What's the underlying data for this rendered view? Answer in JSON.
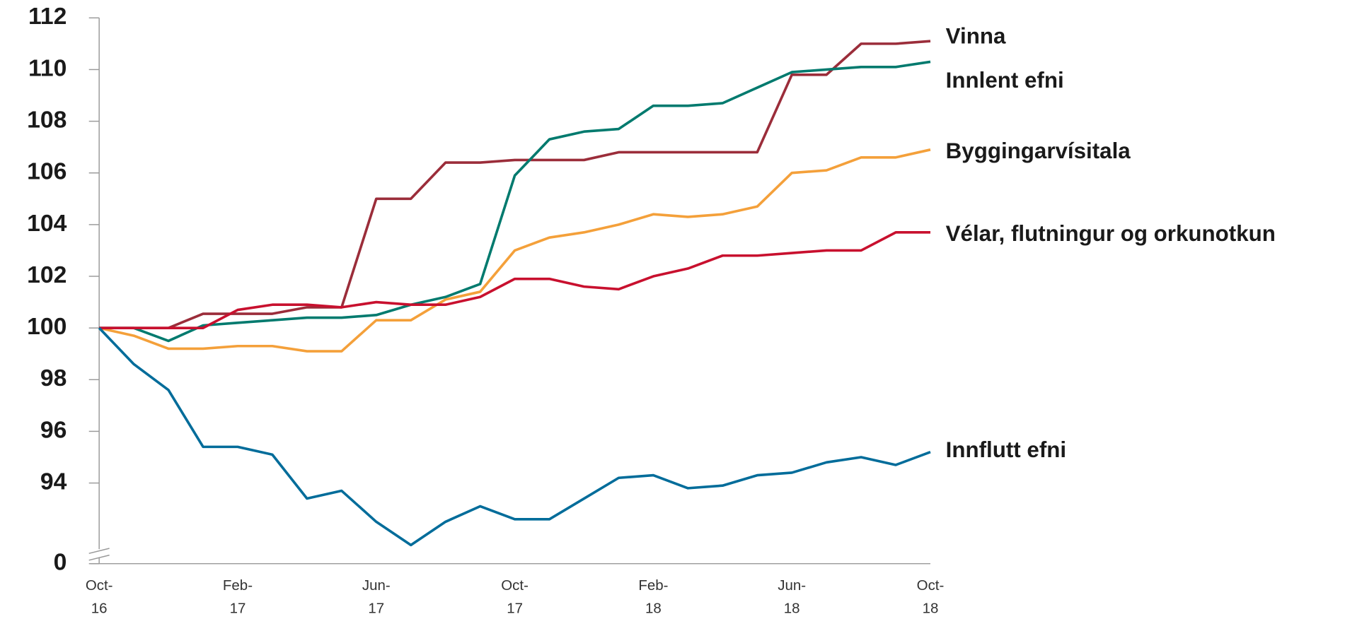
{
  "chart_data": {
    "type": "line",
    "categories": [
      "Oct-16",
      null,
      null,
      null,
      "Feb-17",
      null,
      null,
      null,
      "Jun-17",
      null,
      null,
      null,
      "Oct-17",
      null,
      null,
      null,
      "Feb-18",
      null,
      null,
      null,
      "Jun-18",
      null,
      null,
      null,
      "Oct-18"
    ],
    "ylim": [
      91,
      112
    ],
    "yticks": [
      0,
      94,
      96,
      98,
      100,
      102,
      104,
      106,
      108,
      110,
      112
    ],
    "axis_break": true,
    "series": [
      {
        "name": "Vinna",
        "color": "#9b2d3a",
        "values": [
          100,
          100,
          100,
          100.55,
          100.55,
          100.55,
          100.8,
          100.8,
          105,
          105,
          106.4,
          106.4,
          106.5,
          106.5,
          106.5,
          106.8,
          106.8,
          106.8,
          106.8,
          106.8,
          109.8,
          109.8,
          111,
          111,
          111.1
        ]
      },
      {
        "name": "Innlent efni",
        "color": "#007a6e",
        "values": [
          100,
          100,
          99.5,
          100.1,
          100.2,
          100.3,
          100.4,
          100.4,
          100.5,
          100.9,
          101.2,
          101.7,
          105.9,
          107.3,
          107.6,
          107.7,
          108.6,
          108.6,
          108.7,
          109.3,
          109.9,
          110,
          110.1,
          110.1,
          110.3
        ]
      },
      {
        "name": "Byggingarvísitala",
        "color": "#f4a03a",
        "values": [
          100,
          99.7,
          99.2,
          99.2,
          99.3,
          99.3,
          99.1,
          99.1,
          100.3,
          100.3,
          101.1,
          101.4,
          103,
          103.5,
          103.7,
          104,
          104.4,
          104.3,
          104.4,
          104.7,
          106,
          106.1,
          106.6,
          106.6,
          106.9
        ]
      },
      {
        "name": "Vélar, flutningur og orkunotkun",
        "color": "#c8102e",
        "values": [
          100,
          100,
          100,
          100,
          100.7,
          100.9,
          100.9,
          100.8,
          101,
          100.9,
          100.9,
          101.2,
          101.9,
          101.9,
          101.6,
          101.5,
          102,
          102.3,
          102.8,
          102.8,
          102.9,
          103,
          103,
          103.7,
          103.7
        ]
      },
      {
        "name": "Innflutt efni",
        "color": "#006c9a",
        "values": [
          100,
          98.6,
          97.6,
          95.4,
          95.4,
          95.1,
          93.4,
          93.7,
          92.5,
          91.6,
          92.5,
          93.1,
          92.6,
          92.6,
          93.4,
          94.2,
          94.3,
          93.8,
          93.9,
          94.3,
          94.4,
          94.8,
          95,
          94.7,
          95.2
        ]
      }
    ]
  }
}
